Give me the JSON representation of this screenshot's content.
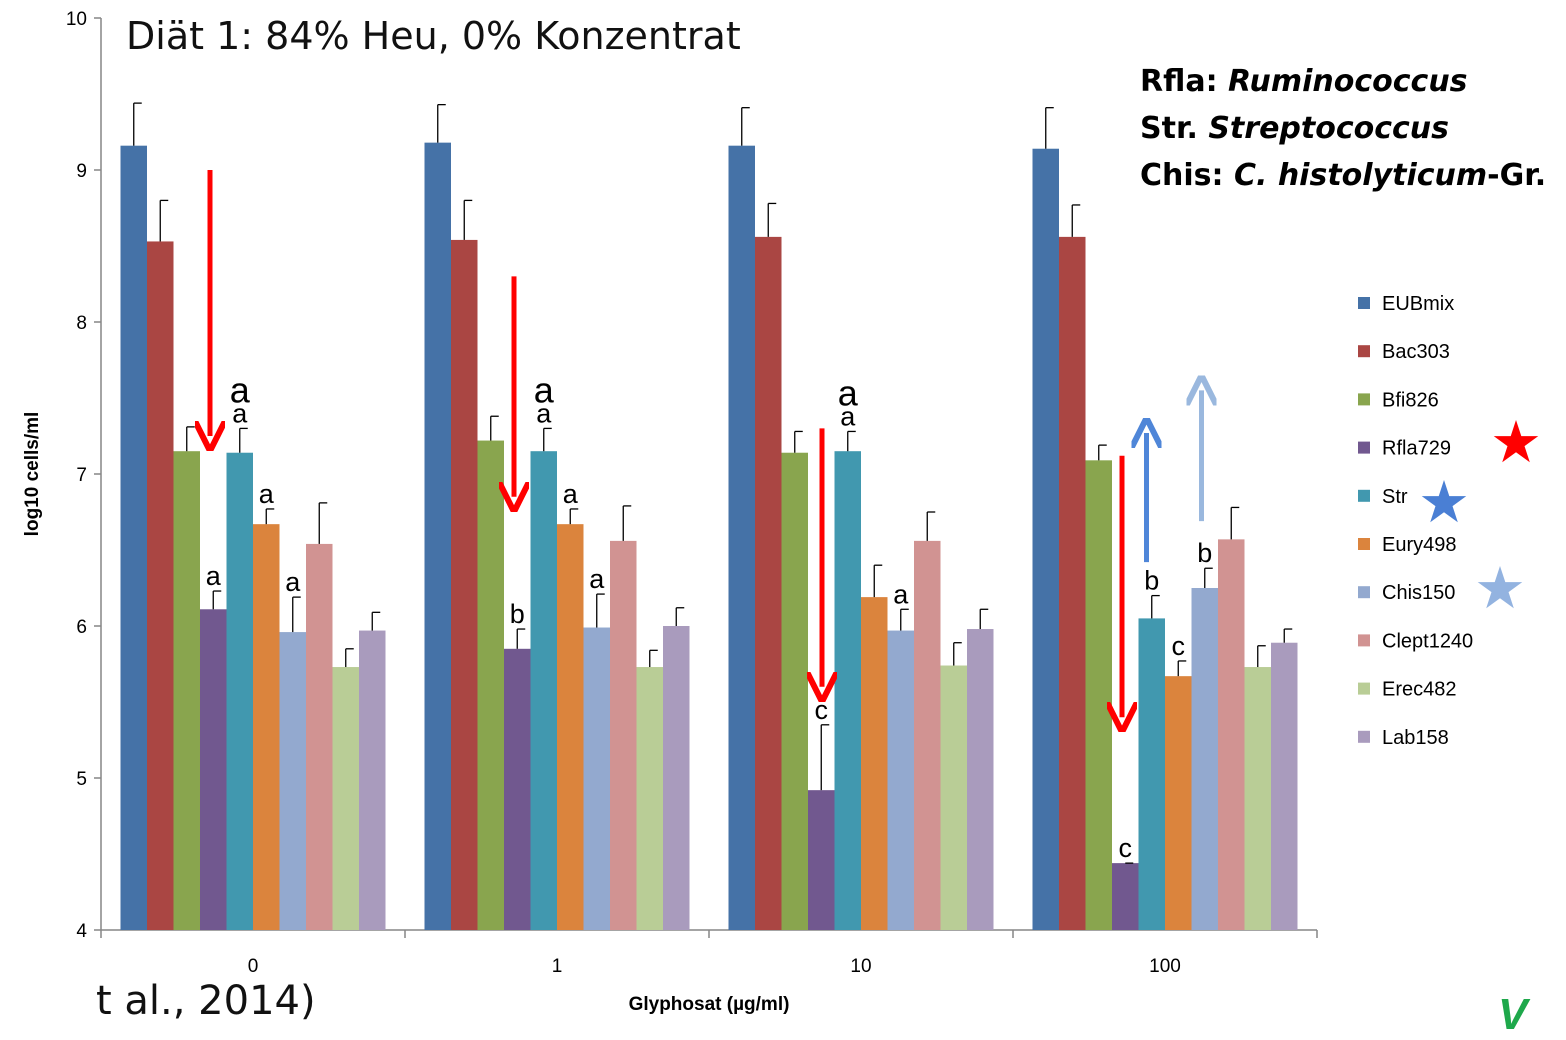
{
  "slide": {
    "title": "Diät 1: 84% Heu, 0% Konzentrat",
    "citation": "t al., 2014)",
    "logo": "V"
  },
  "legend_info": [
    {
      "abbr": "Rfla:",
      "name": "Ruminococcus",
      "suffix": ""
    },
    {
      "abbr": "Str.",
      "name": "Streptococcus",
      "suffix": ""
    },
    {
      "abbr": "Chis:",
      "name": "C. histolyticum",
      "suffix": "-Gr."
    }
  ],
  "colors": {
    "red_arrow": "#ff0000",
    "blue_arrow": "#4f86d8",
    "light_blue_arrow": "#9ab8de",
    "red_star": "#ff0000",
    "blue_star": "#4a7fd4",
    "light_blue_star": "#93b3e0"
  },
  "stars": [
    {
      "series": "Rfla729",
      "color": "#ff0000",
      "glyph": "★"
    },
    {
      "series": "Str",
      "color": "#4a7fd4",
      "glyph": "★"
    },
    {
      "series": "Chis150",
      "color": "#93b3e0",
      "glyph": "★"
    }
  ],
  "chart_data": {
    "type": "bar",
    "xlabel": "Glyphosat (µg/ml)",
    "ylabel": "log10 cells/ml",
    "ylim": [
      4,
      10
    ],
    "yticks": [
      4,
      5,
      6,
      7,
      8,
      9,
      10
    ],
    "categories": [
      "0",
      "1",
      "10",
      "100"
    ],
    "legend_position": "right",
    "series": [
      {
        "name": "EUBmix",
        "color": "#4572a7",
        "values": [
          9.16,
          9.18,
          9.16,
          9.14
        ],
        "errors": [
          0.28,
          0.25,
          0.25,
          0.27
        ]
      },
      {
        "name": "Bac303",
        "color": "#aa4643",
        "values": [
          8.53,
          8.54,
          8.56,
          8.56
        ],
        "errors": [
          0.27,
          0.26,
          0.22,
          0.21
        ]
      },
      {
        "name": "Bfi826",
        "color": "#89a54e",
        "values": [
          7.15,
          7.22,
          7.14,
          7.09
        ],
        "errors": [
          0.16,
          0.16,
          0.14,
          0.1
        ]
      },
      {
        "name": "Rfla729",
        "color": "#71588f",
        "values": [
          6.11,
          5.85,
          4.92,
          4.44
        ],
        "errors": [
          0.12,
          0.13,
          0.43,
          0.0
        ]
      },
      {
        "name": "Str",
        "color": "#4198af",
        "values": [
          7.14,
          7.15,
          7.15,
          6.05
        ],
        "errors": [
          0.16,
          0.15,
          0.13,
          0.15
        ]
      },
      {
        "name": "Eury498",
        "color": "#db843d",
        "values": [
          6.67,
          6.67,
          6.19,
          5.67
        ],
        "errors": [
          0.1,
          0.1,
          0.21,
          0.1
        ]
      },
      {
        "name": "Chis150",
        "color": "#93a9cf",
        "values": [
          5.96,
          5.99,
          5.97,
          6.25
        ],
        "errors": [
          0.23,
          0.22,
          0.14,
          0.13
        ]
      },
      {
        "name": "Clept1240",
        "color": "#d19392",
        "values": [
          6.54,
          6.56,
          6.56,
          6.57
        ],
        "errors": [
          0.27,
          0.23,
          0.19,
          0.21
        ]
      },
      {
        "name": "Erec482",
        "color": "#b9cd96",
        "values": [
          5.73,
          5.73,
          5.74,
          5.73
        ],
        "errors": [
          0.12,
          0.11,
          0.15,
          0.14
        ]
      },
      {
        "name": "Lab158",
        "color": "#a99bbd",
        "values": [
          5.97,
          6.0,
          5.98,
          5.89
        ],
        "errors": [
          0.12,
          0.12,
          0.13,
          0.09
        ]
      }
    ],
    "annotations": [
      {
        "text": "a",
        "category": "0",
        "series": "Rfla729"
      },
      {
        "text": "a",
        "category": "0",
        "series": "Str"
      },
      {
        "text": "a",
        "category": "0",
        "series": "Str",
        "large": true
      },
      {
        "text": "a",
        "category": "0",
        "series": "Eury498"
      },
      {
        "text": "a",
        "category": "0",
        "series": "Chis150"
      },
      {
        "text": "b",
        "category": "1",
        "series": "Rfla729"
      },
      {
        "text": "a",
        "category": "1",
        "series": "Str"
      },
      {
        "text": "a",
        "category": "1",
        "series": "Str",
        "large": true
      },
      {
        "text": "a",
        "category": "1",
        "series": "Eury498"
      },
      {
        "text": "a",
        "category": "1",
        "series": "Chis150"
      },
      {
        "text": "c",
        "category": "10",
        "series": "Rfla729"
      },
      {
        "text": "a",
        "category": "10",
        "series": "Str"
      },
      {
        "text": "a",
        "category": "10",
        "series": "Str",
        "large": true
      },
      {
        "text": "a",
        "category": "10",
        "series": "Chis150"
      },
      {
        "text": "c",
        "category": "100",
        "series": "Rfla729"
      },
      {
        "text": "b",
        "category": "100",
        "series": "Str"
      },
      {
        "text": "c",
        "category": "100",
        "series": "Eury498"
      },
      {
        "text": "b",
        "category": "100",
        "series": "Chis150"
      }
    ],
    "arrows": [
      {
        "category": "0",
        "direction": "down",
        "color": "#ff0000",
        "from": 9.0,
        "to": 7.25
      },
      {
        "category": "1",
        "direction": "down",
        "color": "#ff0000",
        "from": 8.3,
        "to": 6.85
      },
      {
        "category": "10",
        "direction": "down",
        "color": "#ff0000",
        "from": 7.3,
        "to": 5.6
      },
      {
        "category": "100",
        "direction": "down",
        "color": "#ff0000",
        "from": 7.12,
        "to": 5.4
      },
      {
        "category": "100",
        "direction": "up",
        "color": "#4f86d8",
        "from": 6.42,
        "to": 7.27
      },
      {
        "category": "100",
        "direction": "up",
        "color": "#9ab8de",
        "from": 6.69,
        "to": 7.55
      }
    ]
  }
}
